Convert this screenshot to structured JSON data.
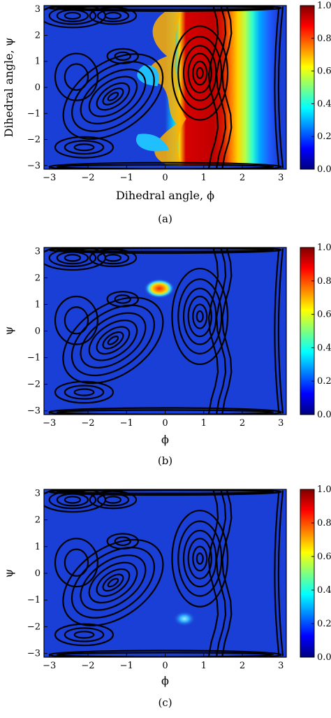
{
  "chart_data": [
    {
      "type": "heatmap",
      "panel_label": "(a)",
      "xlabel": "Dihedral angle, ϕ",
      "ylabel": "Dihedral angle, ψ",
      "xlim": [
        -3.14,
        3.14
      ],
      "ylim": [
        -3.14,
        3.14
      ],
      "xticks": [
        "−3",
        "−2",
        "−1",
        "0",
        "1",
        "2",
        "3"
      ],
      "yticks": [
        "−3",
        "−2",
        "−1",
        "0",
        "1",
        "2",
        "3"
      ],
      "colorbar": {
        "range": [
          0.0,
          1.0
        ],
        "ticks": [
          "0.0",
          "0.2",
          "0.4",
          "0.6",
          "0.8",
          "1.0"
        ]
      },
      "description_values": {
        "high_region_phi": [
          0.2,
          1.3
        ],
        "falloff_phi": [
          1.3,
          2.9
        ]
      }
    },
    {
      "type": "heatmap",
      "panel_label": "(b)",
      "xlabel": "ϕ",
      "ylabel": "ψ",
      "xlim": [
        -3.14,
        3.14
      ],
      "ylim": [
        -3.14,
        3.14
      ],
      "xticks": [
        "−3",
        "−2",
        "−1",
        "0",
        "1",
        "2",
        "3"
      ],
      "yticks": [
        "−3",
        "−2",
        "−1",
        "0",
        "1",
        "2",
        "3"
      ],
      "colorbar": {
        "range": [
          0.0,
          1.0
        ],
        "ticks": [
          "0.0",
          "0.2",
          "0.4",
          "0.6",
          "0.8",
          "1.0"
        ]
      },
      "hotspots": [
        {
          "phi": -0.15,
          "psi": 1.6,
          "value": 0.85
        }
      ]
    },
    {
      "type": "heatmap",
      "panel_label": "(c)",
      "xlabel": "ϕ",
      "ylabel": "ψ",
      "xlim": [
        -3.14,
        3.14
      ],
      "ylim": [
        -3.14,
        3.14
      ],
      "xticks": [
        "−3",
        "−2",
        "−1",
        "0",
        "1",
        "2",
        "3"
      ],
      "yticks": [
        "−3",
        "−2",
        "−1",
        "0",
        "1",
        "2",
        "3"
      ],
      "colorbar": {
        "range": [
          0.0,
          1.0
        ],
        "ticks": [
          "0.0",
          "0.2",
          "0.4",
          "0.6",
          "0.8",
          "1.0"
        ]
      },
      "hotspots": [
        {
          "phi": 0.5,
          "psi": -1.7,
          "value": 0.35
        }
      ]
    }
  ],
  "colormap": [
    "#00007f",
    "#0000ff",
    "#007fff",
    "#00ffff",
    "#7fff7f",
    "#ffff00",
    "#ff7f00",
    "#ff0000",
    "#7f0000"
  ],
  "background_color": "#1a3fd6"
}
